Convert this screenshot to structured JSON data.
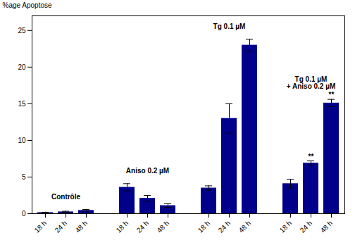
{
  "chart_data": {
    "type": "bar",
    "categories": [
      "18 h",
      "24 h",
      "48 h",
      "18 h",
      "24 h",
      "48 h",
      "18 h",
      "24 h",
      "48 h",
      "18 h",
      "24 h",
      "48 h"
    ],
    "groups": [
      "Contrôle",
      "Contrôle",
      "Contrôle",
      "Aniso 0.2 µM",
      "Aniso 0.2 µM",
      "Aniso 0.2 µM",
      "Tg 0.1 µM",
      "Tg 0.1 µM",
      "Tg 0.1 µM",
      "Tg 0.1 µM\n+ Aniso 0.2 µM",
      "Tg 0.1 µM\n+ Aniso 0.2 µM",
      "Tg 0.1 µM\n+ Aniso 0.2 µM"
    ],
    "values": [
      0.15,
      0.25,
      0.45,
      3.6,
      2.1,
      1.1,
      3.5,
      13.0,
      23.0,
      4.1,
      6.9,
      15.1
    ],
    "errors": [
      0.05,
      0.08,
      0.12,
      0.5,
      0.4,
      0.25,
      0.3,
      2.0,
      0.8,
      0.6,
      0.3,
      0.5
    ],
    "stars": [
      null,
      null,
      null,
      null,
      null,
      null,
      null,
      null,
      null,
      null,
      "**",
      "**"
    ],
    "color": "#00008B",
    "ylabel": "%age Apoptose",
    "ylim": [
      0,
      27
    ],
    "yticks": [
      0,
      5,
      10,
      15,
      20,
      25
    ],
    "grid": false
  }
}
